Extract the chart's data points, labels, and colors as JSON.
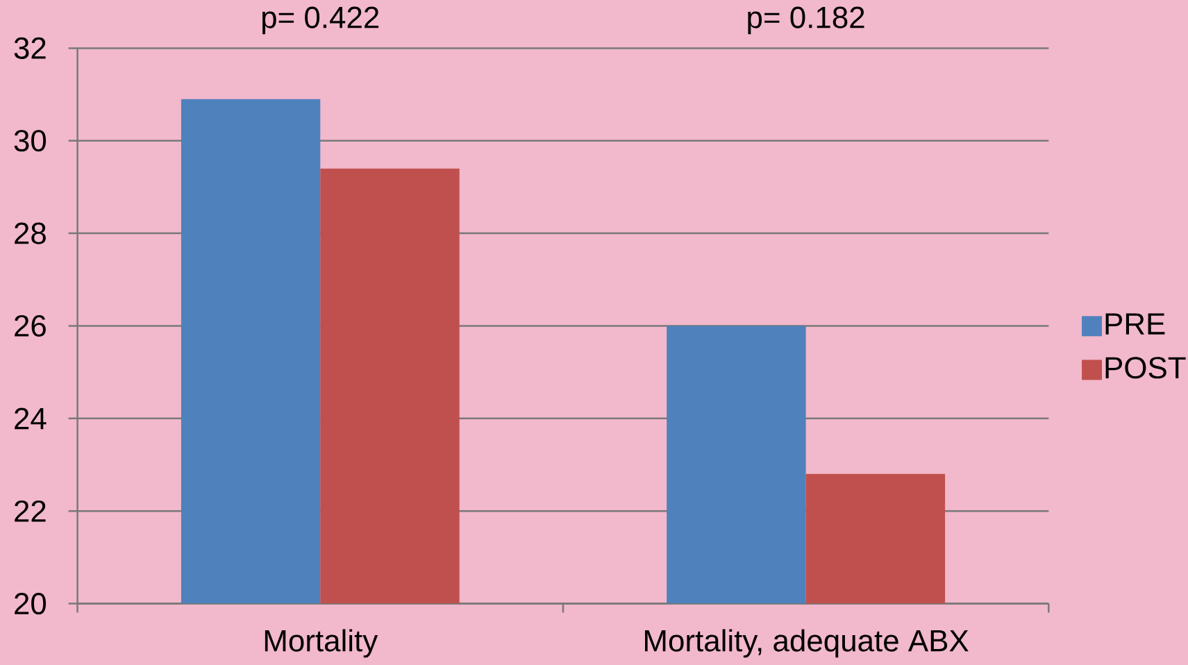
{
  "chart_data": {
    "type": "bar",
    "categories": [
      "Mortality",
      "Mortality, adequate ABX"
    ],
    "series": [
      {
        "name": "PRE",
        "color": "#4f81bd",
        "values": [
          30.9,
          26.0
        ]
      },
      {
        "name": "POST",
        "color": "#c0504d",
        "values": [
          29.4,
          22.8
        ]
      }
    ],
    "ylim": [
      20,
      32
    ],
    "yticks": [
      20,
      22,
      24,
      26,
      28,
      30,
      32
    ],
    "grid": "y",
    "legend": "right",
    "annotations": [
      "p= 0.422",
      "p= 0.182"
    ]
  }
}
